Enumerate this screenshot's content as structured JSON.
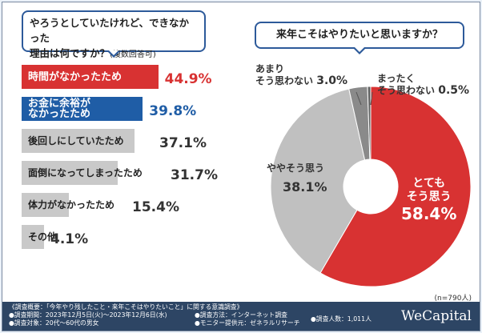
{
  "chart_data": [
    {
      "type": "bar",
      "title": "やろうとしていたけれど、できなかった理由は何ですか？",
      "subtitle": "(複数回答可)",
      "unit": "%",
      "xlim": [
        0,
        50
      ],
      "categories": [
        "時間がなかったため",
        "お金に余裕がなかったため",
        "後回しにしていたため",
        "面倒になってしまったため",
        "体力がなかったため",
        "その他"
      ],
      "values": [
        44.9,
        39.8,
        37.1,
        31.7,
        15.4,
        4.1
      ],
      "value_labels": [
        "44.9%",
        "39.8%",
        "37.1%",
        "31.7%",
        "15.4%",
        "4.1%"
      ],
      "colors": [
        "#d83232",
        "#1f5da6",
        "#c9c9c9",
        "#c9c9c9",
        "#c9c9c9",
        "#c9c9c9"
      ],
      "label_lines": [
        [
          "時間がなかったため"
        ],
        [
          "お金に余裕が",
          "なかったため"
        ],
        [
          "後回しにしていたため"
        ],
        [
          "面倒になってしまったため"
        ],
        [
          "体力がなかったため"
        ],
        [
          "その他"
        ]
      ]
    },
    {
      "type": "pie",
      "title": "来年こそはやりたいと思いますか？",
      "labels": [
        "とてもそう思う",
        "ややそう思う",
        "あまりそう思わない",
        "まったくそう思わない"
      ],
      "values": [
        58.4,
        38.1,
        3.0,
        0.5
      ],
      "value_labels": [
        "58.4%",
        "38.1%",
        "3.0%",
        "0.5%"
      ],
      "colors": [
        "#d83232",
        "#c0c0c0",
        "#8a8a8a",
        "#606060"
      ],
      "n": "(n=790人)"
    }
  ],
  "q1": {
    "line1": "やろうとしていたけれど、できなかった",
    "line2": "理由は何ですか？",
    "sub": "(複数回答可)"
  },
  "q2": {
    "title": "来年こそはやりたいと思いますか？"
  },
  "pie_labels": {
    "l1a": "とても",
    "l1b": "そう思う",
    "v1": "58.4%",
    "l2": "ややそう思う",
    "v2": "38.1%",
    "l3a": "あまり",
    "l3b": "そう思わない",
    "v3": "3.0%",
    "l4a": "まったく",
    "l4b": "そう思わない",
    "v4": "0.5%"
  },
  "n_note": "(n=790人)",
  "footer": {
    "l1": "《調査概要：「今年やり残したこと・来年こそはやりたいこと」に関する意識調査》",
    "l2": "●調査期間：2023年12月5日(火)〜2023年12月6日(水)",
    "l3": "●調査対象：20代〜60代の男女",
    "l4": "●調査方法：インターネット調査",
    "l5": "●モニター提供元：ゼネラルリサーチ",
    "l6": "●調査人数：1,011人",
    "logo": "WeCapital"
  }
}
